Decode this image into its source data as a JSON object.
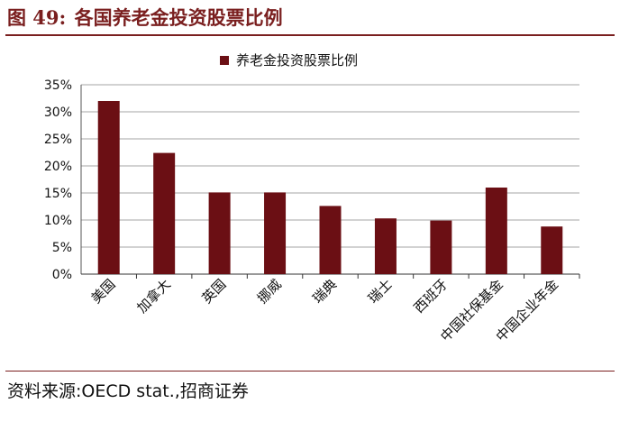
{
  "figure": {
    "number_label": "图 49:",
    "title": "各国养老金投资股票比例",
    "source": "资料来源:OECD stat.,招商证券"
  },
  "colors": {
    "bar": "#6b0f14",
    "title": "#7a1f1f",
    "grid": "#a6a6a6"
  },
  "chart_data": {
    "type": "bar",
    "categories": [
      "美国",
      "加拿大",
      "英国",
      "挪威",
      "瑞典",
      "瑞士",
      "西班牙",
      "中国社保基金",
      "中国企业年金"
    ],
    "series": [
      {
        "name": "养老金投资股票比例",
        "values": [
          32,
          22.4,
          15.1,
          15.1,
          12.6,
          10.3,
          9.9,
          16.0,
          8.8
        ]
      }
    ],
    "y_ticks": [
      "0%",
      "5%",
      "10%",
      "15%",
      "20%",
      "25%",
      "30%",
      "35%"
    ],
    "ylim": [
      0,
      35
    ],
    "y_unit": "%",
    "grid": true,
    "legend_position": "top"
  }
}
